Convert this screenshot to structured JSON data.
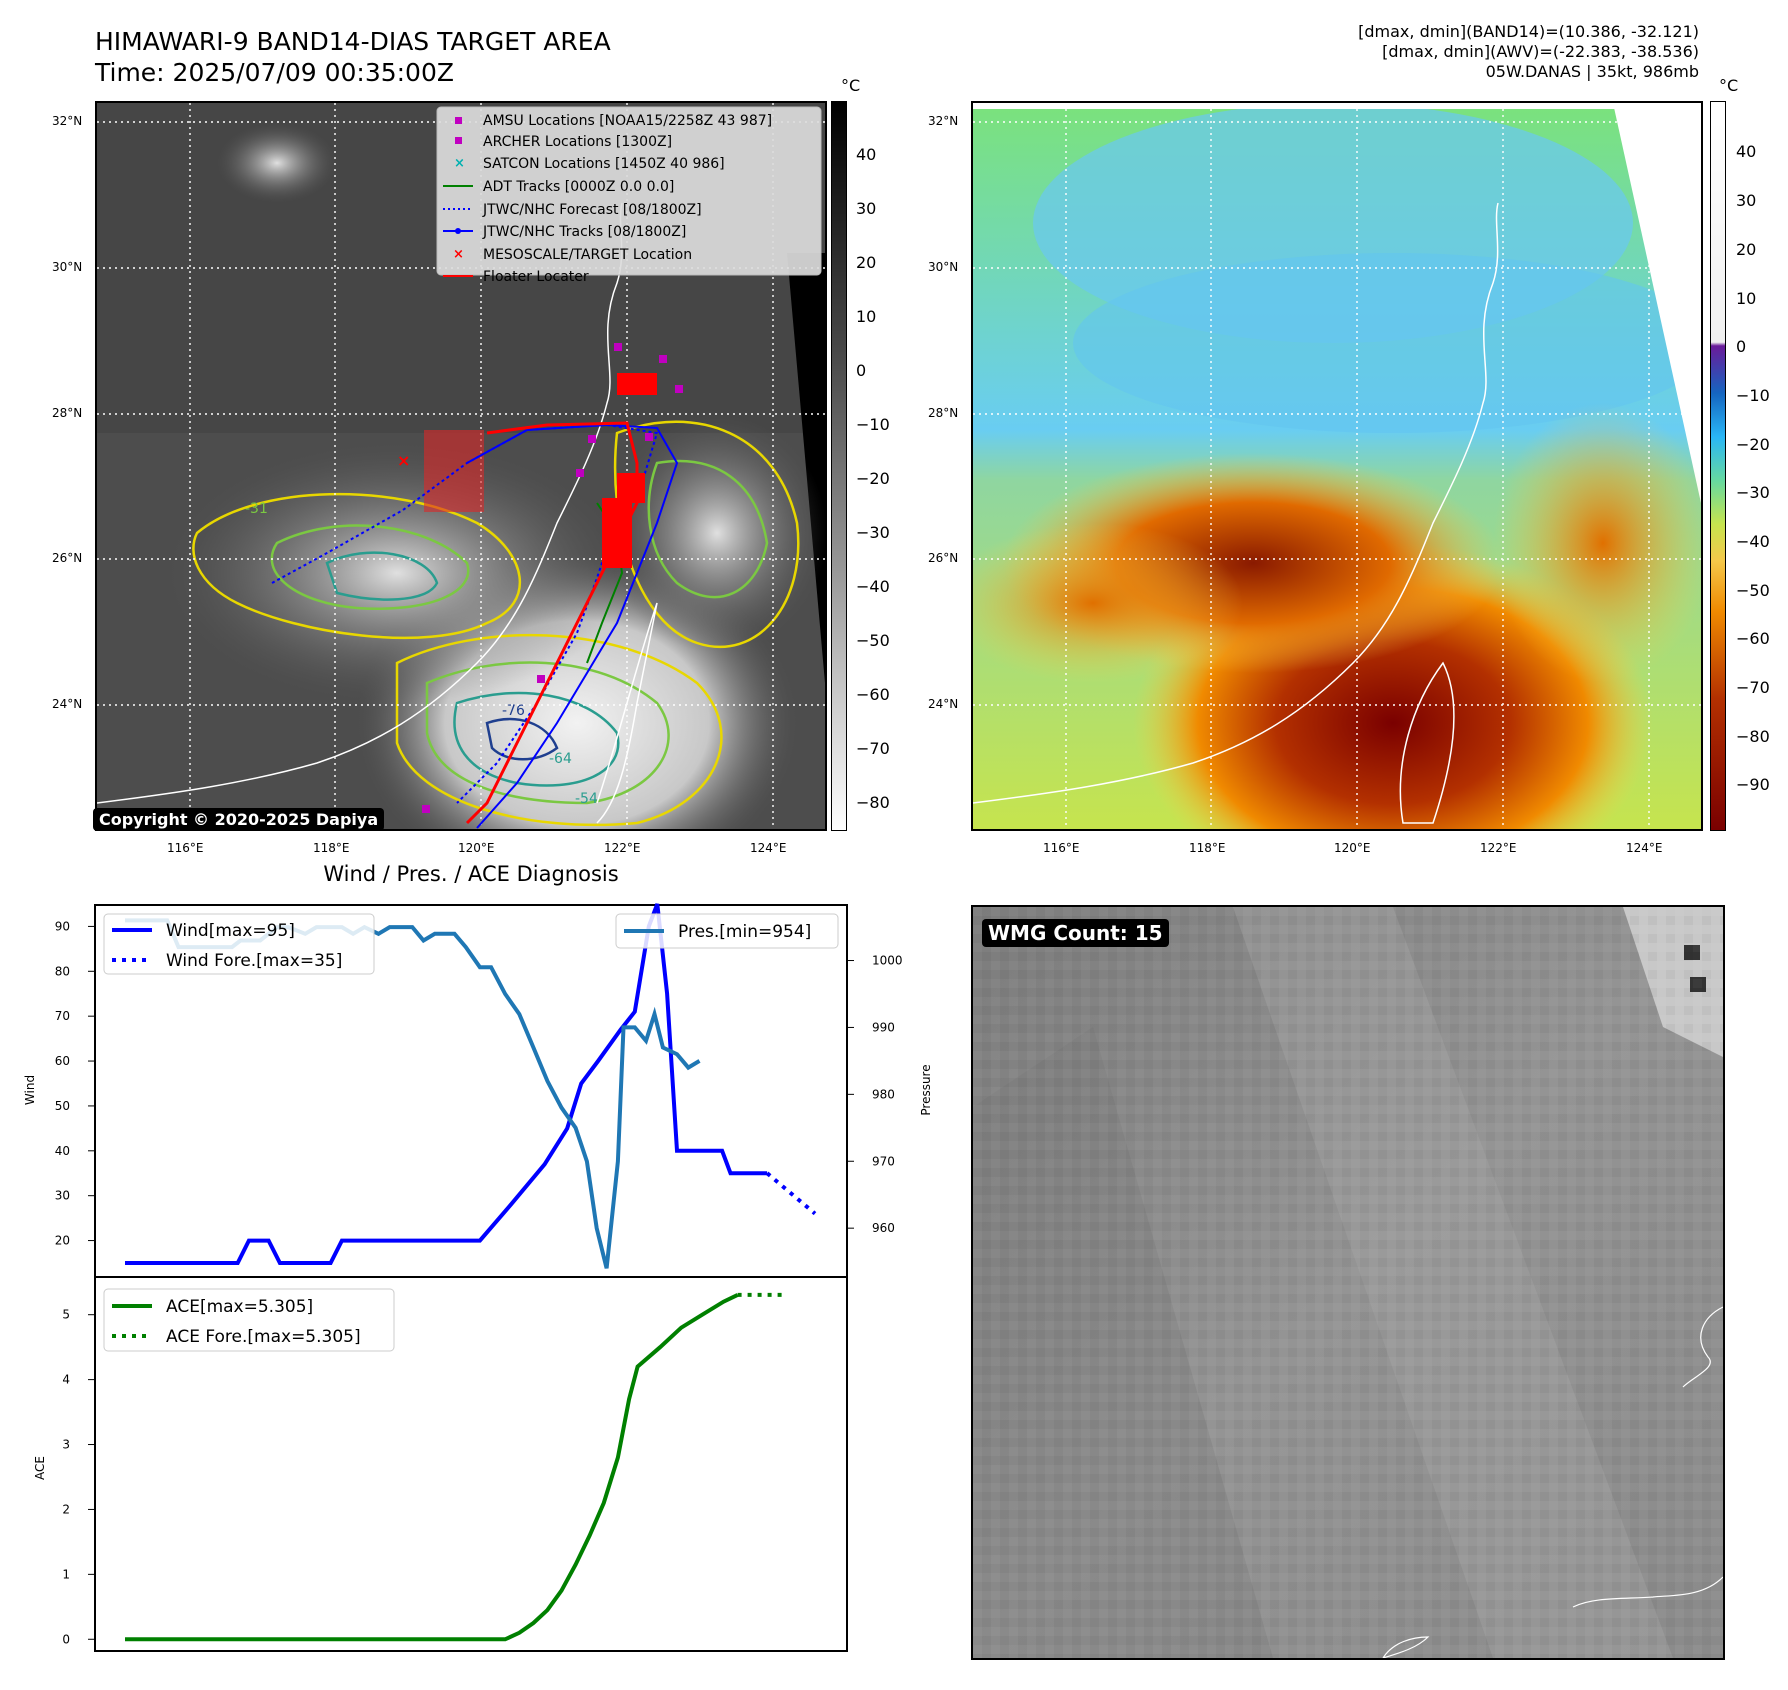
{
  "header": {
    "title_line1": "HIMAWARI-9 BAND14-DIAS TARGET AREA",
    "title_line2": "Time: 2025/07/09 00:35:00Z",
    "stat_line1": "[dmax, dmin](BAND14)=(10.386, -32.121)",
    "stat_line2": "[dmax, dmin](AWV)=(-22.383, -38.536)",
    "stat_line3": "05W.DANAS | 35kt, 986mb"
  },
  "map_common": {
    "lat_labels": [
      "32°N",
      "30°N",
      "28°N",
      "26°N",
      "24°N"
    ],
    "lon_labels": [
      "116°E",
      "118°E",
      "120°E",
      "122°E",
      "124°E"
    ]
  },
  "map_left": {
    "colorbar_unit": "°C",
    "colorbar_ticks": [
      "40",
      "30",
      "20",
      "10",
      "0",
      "−10",
      "−20",
      "−30",
      "−40",
      "−50",
      "−60",
      "−70",
      "−80"
    ],
    "contour_labels": [
      "-31",
      "-54",
      "-64",
      "-76"
    ],
    "legend": [
      "AMSU Locations [NOAA15/2258Z 43 987]",
      "ARCHER Locations [1300Z]",
      "SATCON Locations [1450Z 40 986]",
      "ADT Tracks [0000Z 0.0 0.0]",
      "JTWC/NHC Forecast [08/1800Z]",
      "JTWC/NHC Tracks [08/1800Z]",
      "MESOSCALE/TARGET Location",
      "Floater Locater"
    ],
    "copyright": "Copyright © 2020-2025 Dapiya",
    "colors": {
      "amsu": "#c000c0",
      "archer": "#c000c0",
      "satcon": "#00b0b0",
      "adt": "#008000",
      "forecast": "#0000ff",
      "tracks": "#0000ff",
      "target": "#ff0000",
      "floater": "#ff0000"
    }
  },
  "map_right": {
    "colorbar_unit": "°C",
    "colorbar_ticks": [
      "40",
      "30",
      "20",
      "10",
      "0",
      "−10",
      "−20",
      "−30",
      "−40",
      "−50",
      "−60",
      "−70",
      "−80",
      "−90"
    ]
  },
  "bottom_right": {
    "badge": "WMG Count: 15"
  },
  "chart_data": [
    {
      "type": "line",
      "title": "Wind / Pres. / ACE Diagnosis",
      "ylabel": "Wind",
      "ylabel_right": "Pressure",
      "ylim": [
        15,
        97
      ],
      "ylim_right": [
        953,
        1008
      ],
      "yticks": [
        20,
        30,
        40,
        50,
        60,
        70,
        80,
        90
      ],
      "yticks_right": [
        960,
        970,
        980,
        990,
        1000
      ],
      "legend_left": [
        "Wind[max=95]",
        "Wind Fore.[max=35]"
      ],
      "legend_right": [
        "Pres.[min=954]"
      ],
      "series": [
        {
          "name": "Wind[max=95]",
          "color": "#0000ff",
          "x": [
            0,
            3,
            5,
            7,
            8,
            10,
            11,
            13,
            16,
            17,
            20,
            21,
            24,
            25,
            26,
            27,
            28,
            29,
            30,
            33,
            34,
            37,
            38,
            41,
            42,
            43,
            44,
            45,
            46,
            47,
            48,
            49,
            50,
            52,
            53,
            54,
            55,
            56,
            57,
            58,
            59,
            62,
            63,
            64,
            65,
            66,
            69,
            70,
            71,
            72,
            73,
            74,
            75,
            76,
            77,
            78,
            79,
            80,
            81,
            82,
            83,
            84,
            85,
            86,
            87,
            88,
            89,
            90,
            91,
            92,
            93,
            94,
            95,
            96,
            97,
            98,
            99,
            100,
            101,
            102,
            103,
            104,
            105,
            106,
            107,
            108,
            109,
            110,
            111,
            112,
            113,
            114,
            115,
            116,
            117,
            118,
            119,
            120,
            121,
            122,
            123,
            124,
            125
          ],
          "y": [
            15,
            15,
            15,
            15,
            15,
            15,
            15,
            15,
            15,
            15,
            15,
            15,
            15,
            15,
            15,
            15,
            15,
            15,
            15,
            20,
            20,
            20,
            15,
            15,
            15,
            15,
            15,
            15,
            15,
            15,
            15,
            15,
            15,
            15,
            20,
            20,
            20,
            20,
            20,
            20,
            20,
            20,
            20,
            20,
            20,
            20,
            20,
            20,
            20,
            20,
            20,
            20,
            20,
            20,
            20,
            20,
            20,
            20,
            20,
            20,
            20,
            20,
            20,
            20,
            20,
            20,
            20,
            20,
            20,
            20,
            20,
            20,
            20,
            20,
            20,
            20,
            20,
            20,
            20,
            20,
            20,
            20,
            20,
            20,
            20,
            20,
            20,
            20,
            20,
            20,
            20,
            20,
            20,
            20,
            20,
            20,
            20,
            20,
            20,
            20,
            20,
            20,
            20
          ]
        },
        {
          "name": "Wind Fore.[max=35]",
          "color": "#0000ff",
          "dashed": true,
          "x": [],
          "y": []
        },
        {
          "name": "Pres.[min=954]",
          "color": "#1f77b4",
          "axis": "right",
          "x": [],
          "y": []
        }
      ]
    },
    {
      "type": "line",
      "ylabel": "ACE",
      "ylim": [
        -0.15,
        5.55
      ],
      "yticks": [
        0,
        1,
        2,
        3,
        4,
        5
      ],
      "legend": [
        "ACE[max=5.305]",
        "ACE Fore.[max=5.305]"
      ],
      "series": [
        {
          "name": "ACE[max=5.305]",
          "color": "#008000",
          "x": [],
          "y": []
        },
        {
          "name": "ACE Fore.[max=5.305]",
          "color": "#008000",
          "dashed": true,
          "x": [],
          "y": []
        }
      ]
    }
  ],
  "timeseries": {
    "wind": [
      [
        0,
        95
      ],
      [
        1,
        95
      ],
      [
        2,
        95
      ],
      [
        3,
        95
      ],
      [
        4,
        95
      ],
      [
        5,
        95
      ],
      [
        6,
        95
      ],
      [
        7,
        95
      ],
      [
        8,
        95
      ],
      [
        9,
        95
      ],
      [
        10,
        95
      ],
      [
        11,
        95
      ],
      [
        12,
        95
      ],
      [
        13,
        95
      ],
      [
        14,
        95
      ],
      [
        15,
        95
      ],
      [
        16,
        95
      ],
      [
        17,
        95
      ],
      [
        18,
        95
      ],
      [
        19,
        95
      ],
      [
        20,
        95
      ],
      [
        21,
        95
      ],
      [
        22,
        95
      ],
      [
        23,
        95
      ],
      [
        24,
        95
      ],
      [
        25,
        95
      ],
      [
        26,
        95
      ],
      [
        27,
        95
      ],
      [
        28,
        95
      ],
      [
        29,
        95
      ],
      [
        30,
        95
      ],
      [
        31,
        95
      ],
      [
        32,
        95
      ],
      [
        33,
        95
      ],
      [
        34,
        95
      ],
      [
        35,
        95
      ],
      [
        36,
        95
      ],
      [
        37,
        95
      ],
      [
        38,
        95
      ],
      [
        39,
        95
      ],
      [
        40,
        95
      ]
    ],
    "wind_actual": [
      [
        0,
        15
      ],
      [
        8,
        15
      ],
      [
        8.8,
        20
      ],
      [
        10.2,
        20
      ],
      [
        11,
        15
      ],
      [
        14.6,
        15
      ],
      [
        15.4,
        20
      ],
      [
        25.2,
        20
      ],
      [
        27.4,
        28
      ],
      [
        29.8,
        37
      ],
      [
        31.4,
        45
      ],
      [
        32.4,
        55
      ],
      [
        33.6,
        60
      ],
      [
        35.2,
        67
      ],
      [
        36.2,
        71
      ],
      [
        37.2,
        90
      ],
      [
        37.8,
        95
      ],
      [
        38.5,
        75
      ],
      [
        39.2,
        40
      ],
      [
        41.4,
        40
      ],
      [
        42.4,
        40
      ],
      [
        43.0,
        35
      ],
      [
        45.0,
        35
      ],
      [
        45.6,
        35
      ]
    ],
    "wind_fore": [
      [
        45.6,
        35
      ],
      [
        49.0,
        26
      ]
    ],
    "pres": [
      [
        0,
        1006
      ],
      [
        3,
        1006
      ],
      [
        3.8,
        1002
      ],
      [
        5.4,
        1002
      ],
      [
        7.6,
        1002
      ],
      [
        8.2,
        1003
      ],
      [
        9.6,
        1003
      ],
      [
        10.8,
        1005
      ],
      [
        11.6,
        1005
      ],
      [
        12.8,
        1004
      ],
      [
        13.6,
        1005
      ],
      [
        15.4,
        1005
      ],
      [
        16.2,
        1004
      ],
      [
        17.0,
        1005
      ],
      [
        18.0,
        1004
      ],
      [
        18.8,
        1005
      ],
      [
        20.4,
        1005
      ],
      [
        21.2,
        1003
      ],
      [
        22.0,
        1004
      ],
      [
        23.4,
        1004
      ],
      [
        24.2,
        1002
      ],
      [
        25.2,
        999
      ],
      [
        26.0,
        999
      ],
      [
        27.0,
        995
      ],
      [
        28.0,
        992
      ],
      [
        29.0,
        987
      ],
      [
        30.0,
        982
      ],
      [
        31.0,
        978
      ],
      [
        32.0,
        975
      ],
      [
        32.8,
        970
      ],
      [
        33.5,
        960
      ],
      [
        34.2,
        954
      ],
      [
        35.0,
        970
      ],
      [
        35.4,
        990
      ],
      [
        36.2,
        990
      ],
      [
        37.0,
        988
      ],
      [
        37.6,
        992
      ],
      [
        38.2,
        987
      ],
      [
        39.2,
        986
      ],
      [
        40.0,
        984
      ],
      [
        40.8,
        985
      ]
    ],
    "ace": [
      [
        0,
        0
      ],
      [
        25,
        0
      ],
      [
        27,
        0
      ],
      [
        28,
        0.1
      ],
      [
        29,
        0.25
      ],
      [
        30,
        0.45
      ],
      [
        31,
        0.75
      ],
      [
        32,
        1.15
      ],
      [
        33,
        1.6
      ],
      [
        34,
        2.1
      ],
      [
        35,
        2.8
      ],
      [
        35.8,
        3.7
      ],
      [
        36.4,
        4.2
      ],
      [
        38,
        4.5
      ],
      [
        39.5,
        4.8
      ],
      [
        41,
        5.0
      ],
      [
        42.5,
        5.2
      ],
      [
        43.5,
        5.305
      ]
    ],
    "ace_fore": [
      [
        43.5,
        5.305
      ],
      [
        47.0,
        5.305
      ]
    ]
  }
}
